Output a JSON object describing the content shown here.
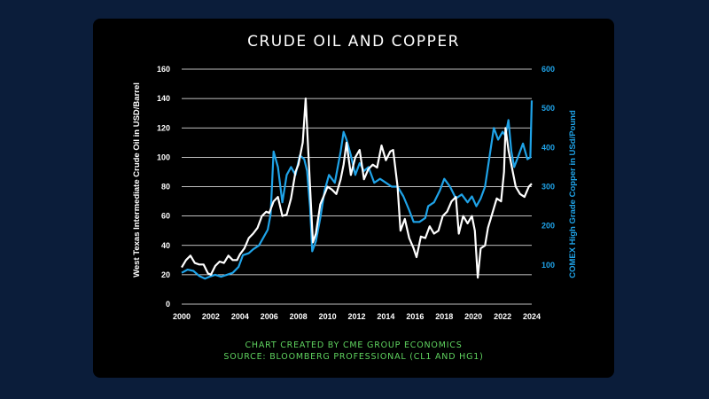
{
  "colors": {
    "page_background": "#0b1d3a",
    "card_background": "#000000",
    "oil": "#ffffff",
    "copper": "#1fa3e8",
    "credit": "#5fd35f",
    "grid": "#ffffff"
  },
  "chart_data": {
    "type": "line",
    "title": "CRUDE OIL AND COPPER",
    "ylabel": "West Texas Intermediate Crude Oil in USD/Barrel",
    "y2label": "COMEX High Grade Copper in USd/Pound",
    "xlim": [
      2000,
      2024
    ],
    "ylim": [
      0,
      160
    ],
    "y2lim": [
      0,
      600
    ],
    "xticks": [
      "2000",
      "2002",
      "2004",
      "2006",
      "2008",
      "2010",
      "2012",
      "2014",
      "2016",
      "2018",
      "2020",
      "2022",
      "2024"
    ],
    "yticks": [
      "0",
      "20",
      "40",
      "60",
      "80",
      "100",
      "120",
      "140",
      "160"
    ],
    "y2ticks": [
      "100",
      "200",
      "300",
      "400",
      "500",
      "600"
    ],
    "grid": true,
    "series": [
      {
        "axis": "left",
        "x": [
          2000.0,
          2000.3,
          2000.6,
          2000.9,
          2001.2,
          2001.5,
          2001.8,
          2002.0,
          2002.3,
          2002.6,
          2002.9,
          2003.2,
          2003.5,
          2003.8,
          2004.0,
          2004.3,
          2004.6,
          2004.9,
          2005.2,
          2005.5,
          2005.8,
          2006.0,
          2006.3,
          2006.6,
          2006.9,
          2007.2,
          2007.5,
          2007.8,
          2008.0,
          2008.3,
          2008.5,
          2008.7,
          2008.9,
          2009.0,
          2009.2,
          2009.5,
          2009.8,
          2010.0,
          2010.3,
          2010.6,
          2010.9,
          2011.1,
          2011.3,
          2011.6,
          2011.9,
          2012.2,
          2012.5,
          2012.8,
          2013.1,
          2013.4,
          2013.7,
          2014.0,
          2014.3,
          2014.5,
          2014.8,
          2015.0,
          2015.3,
          2015.6,
          2015.9,
          2016.1,
          2016.4,
          2016.7,
          2017.0,
          2017.3,
          2017.6,
          2017.9,
          2018.2,
          2018.5,
          2018.8,
          2019.0,
          2019.3,
          2019.6,
          2019.9,
          2020.1,
          2020.3,
          2020.5,
          2020.8,
          2021.0,
          2021.3,
          2021.6,
          2021.9,
          2022.1,
          2022.2,
          2022.4,
          2022.6,
          2022.9,
          2023.2,
          2023.5,
          2023.8,
          2024.0
        ],
        "values": [
          25,
          30,
          33,
          28,
          27,
          27,
          21,
          20,
          26,
          29,
          28,
          33,
          30,
          30,
          34,
          38,
          45,
          48,
          52,
          60,
          63,
          62,
          70,
          73,
          60,
          61,
          72,
          90,
          95,
          110,
          140,
          100,
          60,
          42,
          48,
          68,
          75,
          80,
          78,
          75,
          85,
          95,
          110,
          88,
          100,
          105,
          85,
          92,
          95,
          93,
          108,
          98,
          104,
          105,
          80,
          50,
          58,
          45,
          38,
          32,
          46,
          45,
          53,
          48,
          50,
          60,
          63,
          70,
          73,
          48,
          60,
          55,
          60,
          50,
          18,
          38,
          40,
          52,
          62,
          72,
          70,
          90,
          120,
          105,
          95,
          80,
          75,
          73,
          80,
          82
        ]
      },
      {
        "axis": "right",
        "x": [
          2000.0,
          2000.4,
          2000.8,
          2001.2,
          2001.6,
          2001.9,
          2002.3,
          2002.7,
          2003.1,
          2003.5,
          2003.9,
          2004.2,
          2004.6,
          2004.9,
          2005.3,
          2005.6,
          2005.9,
          2006.1,
          2006.3,
          2006.6,
          2006.9,
          2007.2,
          2007.5,
          2007.8,
          2008.1,
          2008.4,
          2008.6,
          2008.8,
          2008.95,
          2009.2,
          2009.5,
          2009.8,
          2010.1,
          2010.5,
          2010.9,
          2011.1,
          2011.3,
          2011.6,
          2011.9,
          2012.2,
          2012.5,
          2012.8,
          2013.2,
          2013.6,
          2014.0,
          2014.4,
          2014.8,
          2015.2,
          2015.6,
          2015.9,
          2016.3,
          2016.7,
          2016.9,
          2017.3,
          2017.7,
          2018.0,
          2018.4,
          2018.8,
          2019.2,
          2019.6,
          2019.9,
          2020.2,
          2020.5,
          2020.8,
          2021.0,
          2021.2,
          2021.4,
          2021.7,
          2022.0,
          2022.2,
          2022.4,
          2022.6,
          2022.8,
          2023.1,
          2023.4,
          2023.7,
          2023.9,
          2024.0
        ],
        "values": [
          80,
          88,
          85,
          72,
          65,
          70,
          75,
          70,
          75,
          80,
          95,
          125,
          130,
          140,
          150,
          170,
          190,
          230,
          390,
          350,
          260,
          330,
          350,
          330,
          380,
          370,
          340,
          250,
          135,
          160,
          220,
          290,
          330,
          310,
          390,
          440,
          420,
          380,
          330,
          360,
          340,
          350,
          310,
          320,
          310,
          300,
          300,
          275,
          240,
          210,
          210,
          220,
          250,
          260,
          290,
          320,
          300,
          270,
          280,
          260,
          275,
          250,
          270,
          300,
          350,
          400,
          450,
          420,
          440,
          430,
          470,
          390,
          350,
          380,
          410,
          370,
          375,
          520
        ]
      }
    ]
  },
  "credits": {
    "line1": "CHART CREATED BY CME GROUP ECONOMICS",
    "line2": "SOURCE: BLOOMBERG PROFESSIONAL (CL1 AND HG1)"
  }
}
